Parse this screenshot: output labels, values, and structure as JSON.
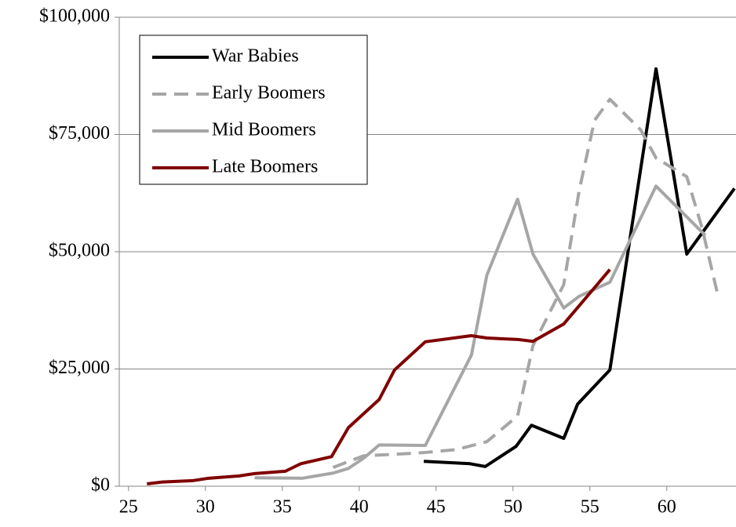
{
  "chart_data": {
    "type": "line",
    "xlim": [
      24.4,
      64.5
    ],
    "xticks": [
      25,
      30,
      35,
      40,
      45,
      50,
      55,
      60
    ],
    "ylim": [
      0,
      100000
    ],
    "yticks": [
      {
        "value": 0,
        "label": "$0"
      },
      {
        "value": 25000,
        "label": "$25,000"
      },
      {
        "value": 50000,
        "label": "$50,000"
      },
      {
        "value": 75000,
        "label": "$75,000"
      },
      {
        "value": 100000,
        "label": "$100,000"
      }
    ],
    "grid": true,
    "legend": "upper left",
    "series": [
      {
        "name": "War Babies",
        "color": "#000000",
        "dashed": false,
        "x": [
          44.2,
          47.2,
          48.2,
          50.2,
          51.2,
          53.3,
          54.2,
          56.3,
          59.3,
          61.3,
          64.4
        ],
        "values": [
          5300,
          4800,
          4200,
          8500,
          13000,
          10200,
          17500,
          24800,
          89000,
          49500,
          63500
        ]
      },
      {
        "name": "Early Boomers",
        "color": "#a6a6a6",
        "dashed": true,
        "x": [
          38.3,
          40.3,
          42.3,
          44.3,
          46.3,
          48.3,
          50.3,
          51.3,
          53.3,
          54.3,
          55.3,
          56.3,
          58.3,
          59.3,
          61.3,
          62.3,
          63.3
        ],
        "values": [
          4000,
          6500,
          6800,
          7200,
          7800,
          9500,
          15000,
          30000,
          43000,
          63000,
          78000,
          82500,
          76000,
          70000,
          66000,
          55000,
          41000
        ]
      },
      {
        "name": "Mid Boomers",
        "color": "#a6a6a6",
        "dashed": false,
        "x": [
          33.2,
          36.3,
          38.3,
          39.3,
          40.3,
          41.3,
          44.3,
          47.3,
          48.3,
          50.3,
          51.3,
          53.3,
          54.3,
          56.3,
          59.3,
          62.5
        ],
        "values": [
          1800,
          1700,
          2800,
          3800,
          6000,
          8800,
          8700,
          28000,
          45000,
          61200,
          49500,
          38000,
          40500,
          43500,
          64000,
          53500
        ]
      },
      {
        "name": "Late Boomers",
        "color": "#800000",
        "dashed": false,
        "x": [
          26.2,
          27.2,
          29.2,
          30.2,
          32.2,
          33.2,
          35.2,
          36.2,
          38.2,
          39.3,
          41.3,
          42.3,
          44.3,
          47.3,
          48.3,
          50.3,
          51.3,
          53.3,
          56.3
        ],
        "values": [
          500,
          900,
          1200,
          1700,
          2200,
          2700,
          3200,
          4800,
          6300,
          12500,
          18500,
          24800,
          30800,
          32100,
          31600,
          31300,
          30900,
          34600,
          46200
        ]
      }
    ]
  }
}
